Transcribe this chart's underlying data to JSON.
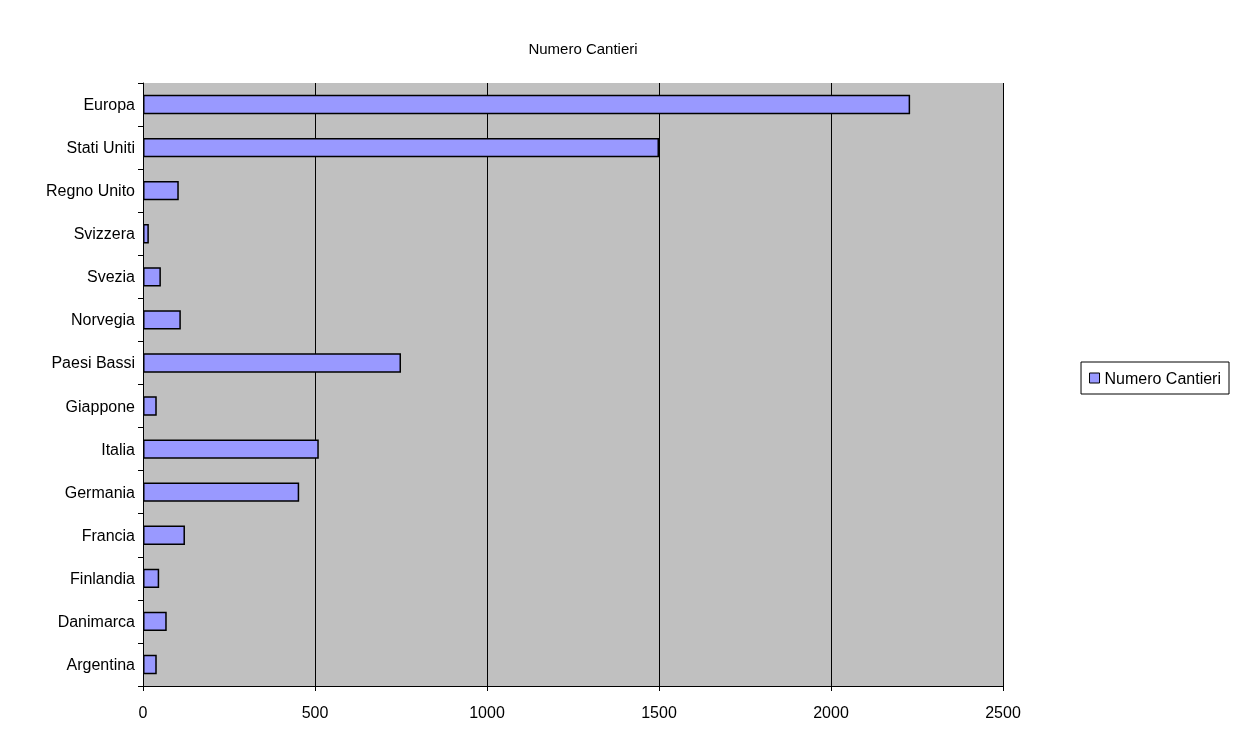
{
  "chart_data": {
    "type": "bar",
    "orientation": "horizontal",
    "title": "Numero Cantieri",
    "categories": [
      "Europa",
      "Stati Uniti",
      "Regno Unito",
      "Svizzera",
      "Svezia",
      "Norvegia",
      "Paesi Bassi",
      "Giappone",
      "Italia",
      "Germania",
      "Francia",
      "Finlandia",
      "Danimarca",
      "Argentina"
    ],
    "series": [
      {
        "name": "Numero Cantieri",
        "color": "#9999ff",
        "values": [
          2230,
          1500,
          104,
          17,
          52,
          110,
          750,
          40,
          511,
          454,
          122,
          47,
          69,
          40
        ]
      }
    ],
    "xlim": [
      0,
      2500
    ],
    "xticks": [
      0,
      500,
      1000,
      1500,
      2000,
      2500
    ],
    "grid": "x",
    "legend": "right"
  }
}
